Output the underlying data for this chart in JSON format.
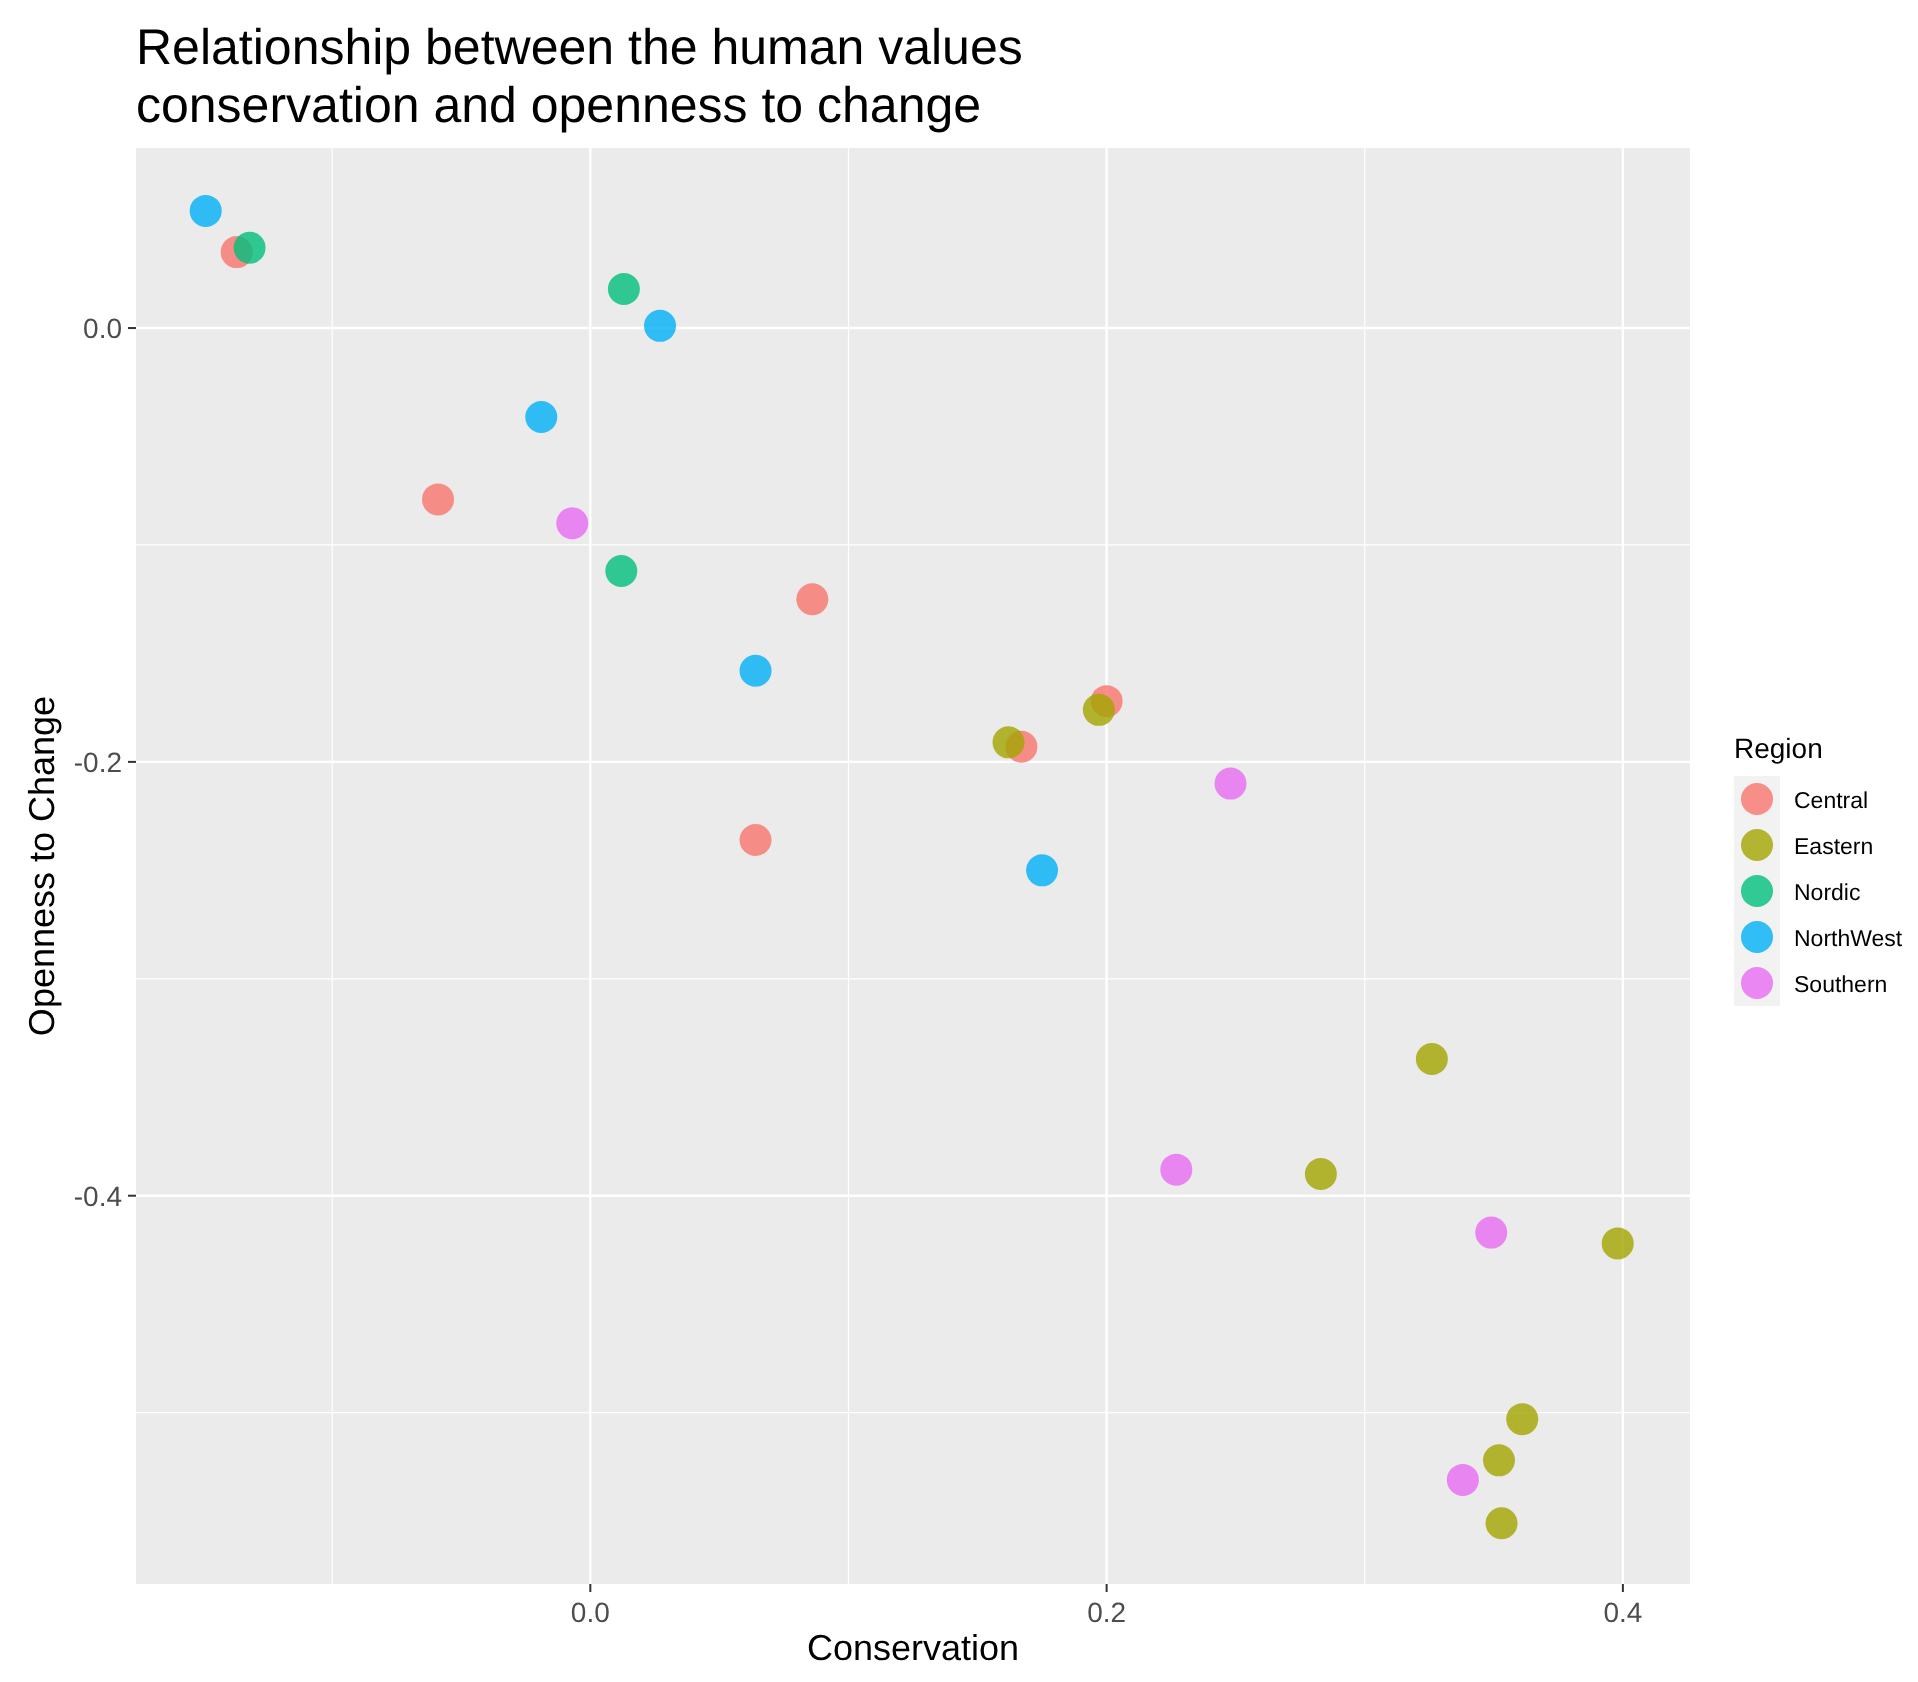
{
  "chart_data": {
    "type": "scatter",
    "title": "Relationship between the human values\nconservation and openness to change",
    "xlabel": "Conservation",
    "ylabel": "Openness to Change",
    "legend_title": "Region",
    "legend": "right",
    "grid": true,
    "marker": "circle",
    "xlim": [
      -0.176,
      0.426
    ],
    "ylim": [
      -0.579,
      0.083
    ],
    "xticks": [
      {
        "value": 0,
        "label": "0.0"
      },
      0.2,
      0.4
    ],
    "yticks": [
      {
        "value": 0,
        "label": "0.0"
      },
      -0.2,
      -0.4
    ],
    "series": [
      {
        "name": "Central",
        "color": "#f8766d",
        "x": [
          -0.137,
          -0.059,
          0.086,
          0.064,
          0.167,
          0.2
        ],
        "values": [
          0.035,
          -0.079,
          -0.125,
          -0.236,
          -0.193,
          -0.172
        ]
      },
      {
        "name": "Eastern",
        "color": "#a3a500",
        "x": [
          0.162,
          0.197,
          0.326,
          0.283,
          0.398,
          0.361,
          0.352,
          0.353
        ],
        "values": [
          -0.191,
          -0.176,
          -0.337,
          -0.39,
          -0.422,
          -0.503,
          -0.522,
          -0.551
        ]
      },
      {
        "name": "Nordic",
        "color": "#00bf7d",
        "x": [
          -0.132,
          0.013,
          0.012
        ],
        "values": [
          0.037,
          0.018,
          -0.112
        ]
      },
      {
        "name": "NorthWest",
        "color": "#00b0f6",
        "x": [
          -0.149,
          0.027,
          -0.019,
          0.064,
          0.175
        ],
        "values": [
          0.054,
          0.001,
          -0.041,
          -0.158,
          -0.25
        ]
      },
      {
        "name": "Southern",
        "color": "#e76bf3",
        "x": [
          -0.007,
          0.248,
          0.227,
          0.349,
          0.338
        ],
        "values": [
          -0.09,
          -0.21,
          -0.388,
          -0.417,
          -0.531
        ]
      }
    ]
  }
}
